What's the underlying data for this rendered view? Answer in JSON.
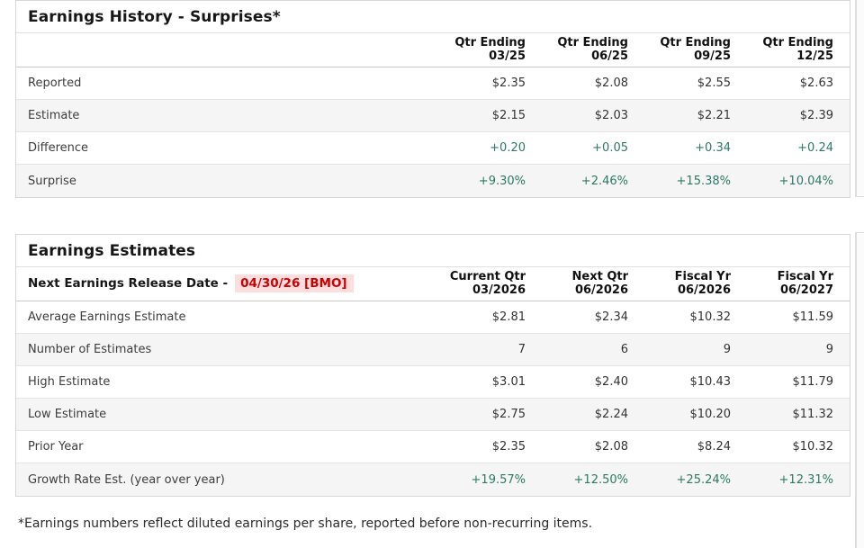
{
  "colors": {
    "green": "#2d7a64",
    "red": "#cc0000",
    "red_highlight_bg": "#fcdede"
  },
  "history": {
    "title": "Earnings History - Surprises*",
    "columns": [
      {
        "line1": "Qtr Ending",
        "line2": "03/25"
      },
      {
        "line1": "Qtr Ending",
        "line2": "06/25"
      },
      {
        "line1": "Qtr Ending",
        "line2": "09/25"
      },
      {
        "line1": "Qtr Ending",
        "line2": "12/25"
      }
    ],
    "rows": [
      {
        "label": "Reported",
        "values": [
          "$2.35",
          "$2.08",
          "$2.55",
          "$2.63"
        ]
      },
      {
        "label": "Estimate",
        "values": [
          "$2.15",
          "$2.03",
          "$2.21",
          "$2.39"
        ]
      },
      {
        "label": "Difference",
        "values": [
          "+0.20",
          "+0.05",
          "+0.34",
          "+0.24"
        ]
      },
      {
        "label": "Surprise",
        "values": [
          "+9.30%",
          "+2.46%",
          "+15.38%",
          "+10.04%"
        ]
      }
    ]
  },
  "estimates": {
    "title": "Earnings Estimates",
    "release_label": "Next Earnings Release Date -",
    "release_date": "04/30/26 [BMO]",
    "columns": [
      {
        "line1": "Current Qtr",
        "line2": "03/2026"
      },
      {
        "line1": "Next Qtr",
        "line2": "06/2026"
      },
      {
        "line1": "Fiscal Yr",
        "line2": "06/2026"
      },
      {
        "line1": "Fiscal Yr",
        "line2": "06/2027"
      }
    ],
    "rows": [
      {
        "label": "Average Earnings Estimate",
        "values": [
          "$2.81",
          "$2.34",
          "$10.32",
          "$11.59"
        ]
      },
      {
        "label": "Number of Estimates",
        "values": [
          "7",
          "6",
          "9",
          "9"
        ]
      },
      {
        "label": "High Estimate",
        "values": [
          "$3.01",
          "$2.40",
          "$10.43",
          "$11.79"
        ]
      },
      {
        "label": "Low Estimate",
        "values": [
          "$2.75",
          "$2.24",
          "$10.20",
          "$11.32"
        ]
      },
      {
        "label": "Prior Year",
        "values": [
          "$2.35",
          "$2.08",
          "$8.24",
          "$10.32"
        ]
      },
      {
        "label": "Growth Rate Est. (year over year)",
        "values": [
          "+19.57%",
          "+12.50%",
          "+25.24%",
          "+12.31%"
        ]
      }
    ]
  },
  "footnote": "*Earnings numbers reflect diluted earnings per share, reported before non-recurring items."
}
